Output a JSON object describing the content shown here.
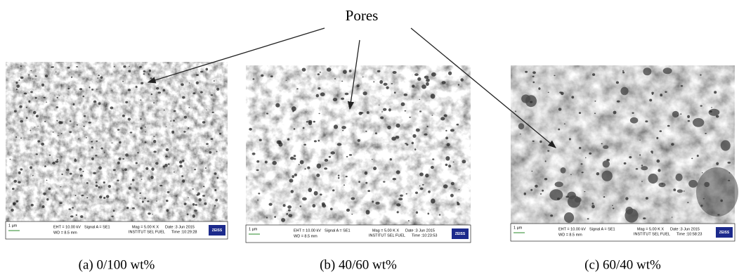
{
  "label": "Pores",
  "panels": [
    {
      "caption": "(a) 0/100 wt%",
      "scale_bar": "1 µm",
      "eht": "EHT = 10.00 kV",
      "signal": "Signal A = SE1",
      "mag": "Mag =  5.00 K X",
      "date": "Date :3 Jun 2015",
      "wd": "WD = 8.5 mm",
      "institute": "INSTITUT SEL FUEL",
      "time": "Time :10:29:28",
      "logo": "ZEISS"
    },
    {
      "caption": "(b) 40/60 wt%",
      "scale_bar": "1 µm",
      "eht": "EHT = 10.00 kV",
      "signal": "Signal A = SE1",
      "mag": "Mag =  5.00 K X",
      "date": "Date :3 Jun 2015",
      "wd": "WD = 8.5 mm",
      "institute": "INSTITUT SEL FUEL",
      "time": "Time :10:23:53",
      "logo": "ZEISS"
    },
    {
      "caption": "(c) 60/40 wt%",
      "scale_bar": "1 µm",
      "eht": "EHT = 10.00 kV",
      "signal": "Signal A = SE1",
      "mag": "Mag =  5.00 K X",
      "date": "Date :3 Jun 2015",
      "wd": "WD = 8.5 mm",
      "institute": "INSTITUT SEL FUEL",
      "time": "Time :10:58:23",
      "logo": "ZEISS"
    }
  ]
}
